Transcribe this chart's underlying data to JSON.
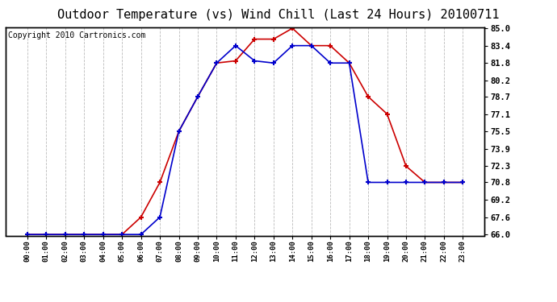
{
  "title": "Outdoor Temperature (vs) Wind Chill (Last 24 Hours) 20100711",
  "copyright": "Copyright 2010 Cartronics.com",
  "x_labels": [
    "00:00",
    "01:00",
    "02:00",
    "03:00",
    "04:00",
    "05:00",
    "06:00",
    "07:00",
    "08:00",
    "09:00",
    "10:00",
    "11:00",
    "12:00",
    "13:00",
    "14:00",
    "15:00",
    "16:00",
    "17:00",
    "18:00",
    "19:00",
    "20:00",
    "21:00",
    "22:00",
    "23:00"
  ],
  "temp_red": [
    66.0,
    66.0,
    66.0,
    66.0,
    66.0,
    66.0,
    67.6,
    70.8,
    75.5,
    78.7,
    81.8,
    82.0,
    84.0,
    84.0,
    85.0,
    83.4,
    83.4,
    81.8,
    78.7,
    77.1,
    72.3,
    70.8,
    70.8,
    70.8
  ],
  "wind_blue": [
    66.0,
    66.0,
    66.0,
    66.0,
    66.0,
    66.0,
    66.0,
    67.6,
    75.5,
    78.7,
    81.8,
    83.4,
    82.0,
    81.8,
    83.4,
    83.4,
    81.8,
    81.8,
    70.8,
    70.8,
    70.8,
    70.8,
    70.8,
    70.8
  ],
  "ylim_min": 66.0,
  "ylim_max": 85.0,
  "yticks": [
    66.0,
    67.6,
    69.2,
    70.8,
    72.3,
    73.9,
    75.5,
    77.1,
    78.7,
    80.2,
    81.8,
    83.4,
    85.0
  ],
  "bg_color": "#ffffff",
  "plot_bg_color": "#ffffff",
  "grid_color": "#bbbbbb",
  "red_color": "#cc0000",
  "blue_color": "#0000cc",
  "title_fontsize": 11,
  "copyright_fontsize": 7
}
